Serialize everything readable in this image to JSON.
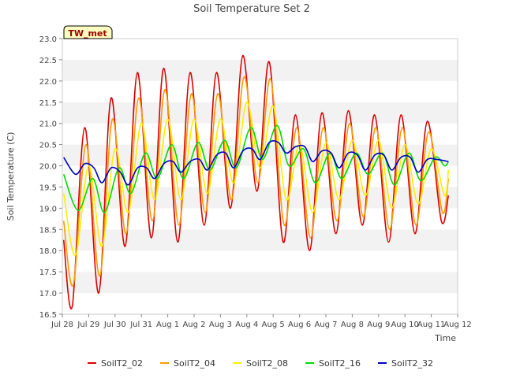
{
  "chart_data": {
    "type": "line",
    "title": "Soil Temperature Set 2",
    "xlabel": "Time",
    "ylabel": "Soil Temperature (C)",
    "site_label": "TW_met",
    "xlim": [
      0,
      15
    ],
    "ylim": [
      16.5,
      23.0
    ],
    "yticks": [
      16.5,
      17.0,
      17.5,
      18.0,
      18.5,
      19.0,
      19.5,
      20.0,
      20.5,
      21.0,
      21.5,
      22.0,
      22.5,
      23.0
    ],
    "ytick_labels": [
      "16.5",
      "17.0",
      "17.5",
      "18.0",
      "18.5",
      "19.0",
      "19.5",
      "20.0",
      "20.5",
      "21.0",
      "21.5",
      "22.0",
      "22.5",
      "23.0"
    ],
    "xticks": [
      0,
      1,
      2,
      3,
      4,
      5,
      6,
      7,
      8,
      9,
      10,
      11,
      12,
      13,
      14,
      15
    ],
    "xtick_labels": [
      "Jul 28",
      "Jul 29",
      "Jul 30",
      "Jul 31",
      "Aug 1",
      "Aug 2",
      "Aug 3",
      "Aug 4",
      "Aug 5",
      "Aug 6",
      "Aug 7",
      "Aug 8",
      "Aug 9",
      "Aug 10",
      "Aug 11",
      "Aug 12"
    ],
    "grid": "horizontal bands",
    "legend_position": "bottom",
    "series": [
      {
        "name": "SoilT2_02",
        "color": "#dd0000",
        "x": [
          0.05,
          0.38,
          0.85,
          1.38,
          1.85,
          2.38,
          2.85,
          3.38,
          3.85,
          4.38,
          4.85,
          5.38,
          5.85,
          6.38,
          6.85,
          7.38,
          7.85,
          8.38,
          8.85,
          9.38,
          9.85,
          10.38,
          10.85,
          11.38,
          11.85,
          12.38,
          12.85,
          13.38,
          13.85,
          14.38,
          14.65
        ],
        "y": [
          18.25,
          16.7,
          20.9,
          17.0,
          21.6,
          18.1,
          22.2,
          18.3,
          22.3,
          18.2,
          22.2,
          18.6,
          22.2,
          19.0,
          22.6,
          19.4,
          22.45,
          18.2,
          21.2,
          18.0,
          21.25,
          18.4,
          21.3,
          18.6,
          21.2,
          18.2,
          21.2,
          18.4,
          21.05,
          18.7,
          19.3
        ]
      },
      {
        "name": "SoilT2_04",
        "color": "#ff9900",
        "x": [
          0.05,
          0.42,
          0.9,
          1.42,
          1.9,
          2.42,
          2.9,
          3.42,
          3.9,
          4.42,
          4.9,
          5.42,
          5.9,
          6.42,
          6.9,
          7.42,
          7.9,
          8.42,
          8.9,
          9.42,
          9.9,
          10.42,
          10.9,
          11.42,
          11.9,
          12.42,
          12.9,
          13.42,
          13.9,
          14.42,
          14.65
        ],
        "y": [
          18.7,
          17.2,
          20.5,
          17.4,
          21.1,
          18.4,
          21.6,
          18.7,
          21.8,
          18.6,
          21.7,
          18.9,
          21.7,
          19.2,
          22.1,
          19.6,
          22.05,
          18.6,
          20.9,
          18.3,
          20.9,
          18.7,
          21.0,
          18.8,
          20.9,
          18.5,
          20.9,
          18.6,
          20.8,
          18.9,
          19.7
        ]
      },
      {
        "name": "SoilT2_08",
        "color": "#ffee00",
        "x": [
          0.05,
          0.5,
          1.0,
          1.5,
          2.0,
          2.5,
          3.0,
          3.5,
          4.0,
          4.5,
          5.0,
          5.5,
          6.0,
          6.5,
          7.0,
          7.5,
          8.0,
          8.5,
          9.0,
          9.5,
          10.0,
          10.5,
          11.0,
          11.5,
          12.0,
          12.5,
          13.0,
          13.5,
          14.0,
          14.5,
          14.65
        ],
        "y": [
          19.35,
          17.9,
          20.0,
          18.1,
          20.4,
          18.9,
          21.0,
          19.2,
          21.1,
          19.2,
          21.1,
          19.35,
          21.1,
          19.6,
          21.5,
          19.95,
          21.4,
          19.2,
          20.5,
          18.9,
          20.55,
          19.2,
          20.6,
          19.3,
          20.6,
          19.0,
          20.5,
          19.1,
          20.4,
          19.3,
          19.9
        ]
      },
      {
        "name": "SoilT2_16",
        "color": "#00dd00",
        "x": [
          0.05,
          0.6,
          1.15,
          1.6,
          2.15,
          2.6,
          3.15,
          3.6,
          4.15,
          4.6,
          5.15,
          5.6,
          6.15,
          6.6,
          7.15,
          7.6,
          8.15,
          8.6,
          9.15,
          9.6,
          10.15,
          10.6,
          11.15,
          11.6,
          12.15,
          12.6,
          13.15,
          13.6,
          14.15,
          14.5,
          14.65
        ],
        "y": [
          19.8,
          18.95,
          19.7,
          18.9,
          19.95,
          19.35,
          20.3,
          19.7,
          20.5,
          19.7,
          20.55,
          19.9,
          20.6,
          19.95,
          20.9,
          20.15,
          20.95,
          20.0,
          20.4,
          19.6,
          20.3,
          19.7,
          20.3,
          19.8,
          20.3,
          19.55,
          20.3,
          19.65,
          20.2,
          20.0,
          20.1
        ]
      },
      {
        "name": "SoilT2_32",
        "color": "#0000cc",
        "x": [
          0.05,
          0.5,
          0.85,
          1.2,
          1.5,
          1.85,
          2.2,
          2.5,
          2.85,
          3.2,
          3.5,
          3.85,
          4.2,
          4.5,
          4.85,
          5.2,
          5.5,
          5.85,
          6.2,
          6.5,
          6.85,
          7.2,
          7.5,
          7.85,
          8.2,
          8.5,
          8.85,
          9.2,
          9.5,
          9.85,
          10.2,
          10.5,
          10.85,
          11.2,
          11.5,
          11.85,
          12.2,
          12.5,
          12.85,
          13.2,
          13.5,
          13.85,
          14.2,
          14.65
        ],
        "y": [
          20.2,
          19.8,
          20.05,
          19.95,
          19.6,
          19.95,
          19.85,
          19.55,
          19.95,
          19.95,
          19.7,
          20.05,
          20.1,
          19.85,
          20.1,
          20.15,
          19.9,
          20.25,
          20.3,
          19.95,
          20.35,
          20.4,
          20.15,
          20.55,
          20.55,
          20.3,
          20.45,
          20.45,
          20.1,
          20.35,
          20.3,
          19.95,
          20.3,
          20.25,
          19.9,
          20.25,
          20.25,
          19.9,
          20.2,
          20.2,
          19.85,
          20.15,
          20.15,
          20.1
        ]
      }
    ]
  }
}
